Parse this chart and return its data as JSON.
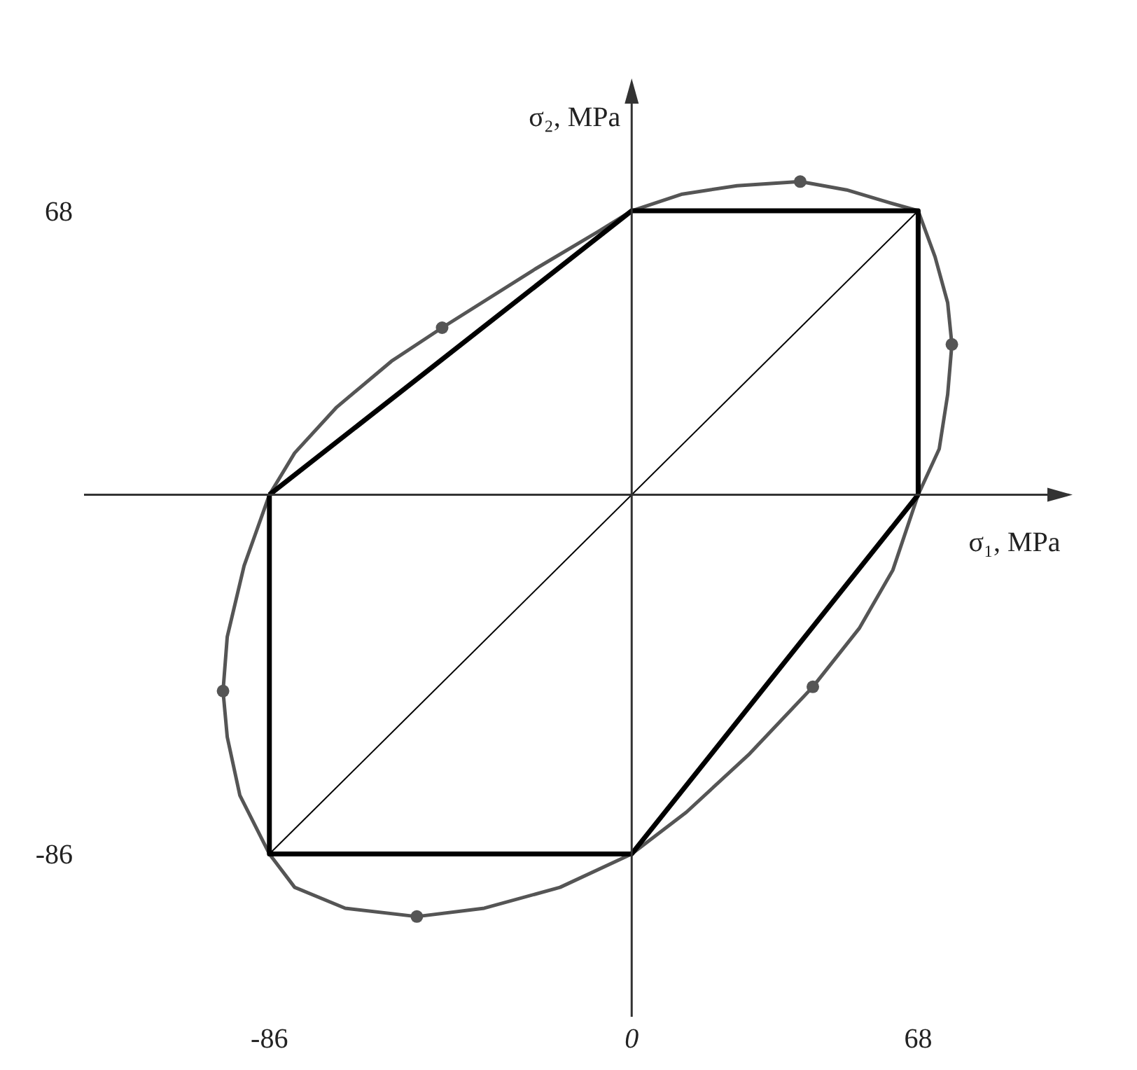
{
  "chart_data": {
    "type": "line",
    "xlabel": "σ₁, MPa",
    "ylabel": "σ₂, MPa",
    "xlim": [
      -130,
      100
    ],
    "ylim": [
      -125,
      95
    ],
    "xticks": [
      -86,
      0,
      68
    ],
    "yticks": [
      -86,
      68
    ],
    "series": [
      {
        "color": "#555555",
        "x": [
          -97,
          -96,
          -92,
          -86,
          -80,
          -70,
          -57,
          -45,
          -23,
          -8,
          0,
          12,
          25,
          40,
          51,
          61,
          68,
          72,
          75,
          76
        ],
        "values": [
          -47,
          -34,
          -17,
          0,
          10,
          21,
          32,
          40,
          54,
          63,
          68,
          72,
          74,
          75,
          73,
          70,
          68,
          57,
          46,
          36
        ]
      },
      {
        "color": "#555555",
        "x": [
          76,
          75,
          73,
          68,
          62,
          54,
          43,
          28,
          13,
          0,
          -17,
          -35,
          -51,
          -68,
          -80,
          -86,
          -93,
          -96,
          -97
        ],
        "values": [
          36,
          24,
          11,
          0,
          -18,
          -32,
          -46,
          -62,
          -76,
          -86,
          -94,
          -99,
          -101,
          -99,
          -94,
          -86,
          -72,
          -58,
          -47
        ]
      },
      {
        "color": "#000000",
        "x": [
          -86,
          0,
          68,
          68
        ],
        "values": [
          0,
          68,
          68,
          0
        ]
      },
      {
        "color": "#000000",
        "x": [
          68,
          0,
          -86,
          -86
        ],
        "values": [
          0,
          -86,
          -86,
          0
        ]
      },
      {
        "color": "#000000",
        "x": [
          -86,
          68
        ],
        "values": [
          -86,
          68
        ]
      },
      {
        "type": "scatter",
        "color": "#555555",
        "marker": "circle",
        "x": [
          40,
          76,
          43,
          -51,
          -97,
          -45
        ],
        "values": [
          75,
          36,
          -46,
          -101,
          -47,
          40
        ]
      }
    ]
  }
}
